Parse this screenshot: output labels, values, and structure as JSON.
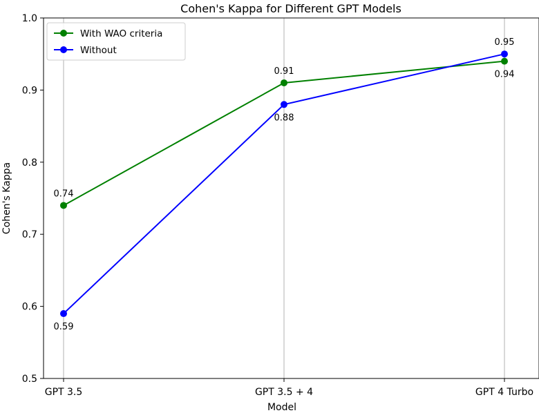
{
  "chart_data": {
    "type": "line",
    "title": "Cohen's Kappa for Different GPT Models",
    "xlabel": "Model",
    "ylabel": "Cohen's Kappa",
    "categories": [
      "GPT 3.5",
      "GPT 3.5 + 4",
      "GPT 4 Turbo"
    ],
    "ylim": [
      0.5,
      1.0
    ],
    "yticks": [
      "0.5",
      "0.6",
      "0.7",
      "0.8",
      "0.9",
      "1.0"
    ],
    "grid": "vertical",
    "legend_position": "top-left",
    "series": [
      {
        "name": "With WAO criteria",
        "color": "#008000",
        "values": [
          0.74,
          0.91,
          0.94
        ],
        "labels": [
          "0.74",
          "0.91",
          "0.94"
        ],
        "label_side": [
          "above",
          "above",
          "below"
        ]
      },
      {
        "name": "Without",
        "color": "#0000ff",
        "values": [
          0.59,
          0.88,
          0.95
        ],
        "labels": [
          "0.59",
          "0.88",
          "0.95"
        ],
        "label_side": [
          "below",
          "below",
          "above"
        ]
      }
    ]
  }
}
